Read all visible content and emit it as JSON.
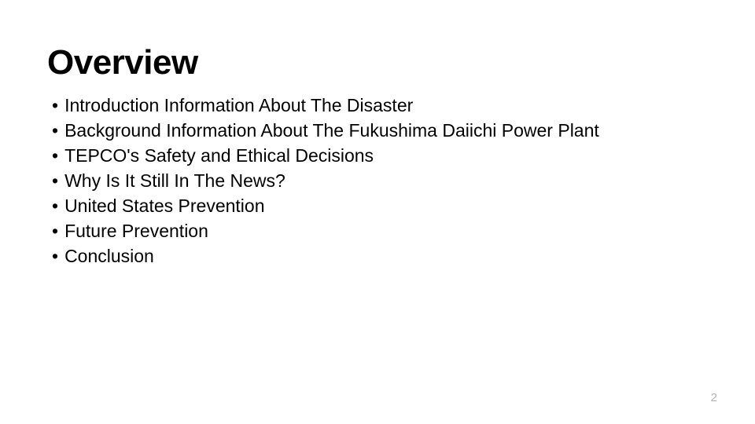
{
  "slide": {
    "title": "Overview",
    "bullets": [
      "Introduction Information About The Disaster",
      "Background Information About The Fukushima Daiichi Power Plant",
      "TEPCO's Safety and Ethical Decisions",
      "Why Is It Still In The News?",
      "United States Prevention",
      "Future Prevention",
      "Conclusion"
    ],
    "page_number": "2",
    "styling": {
      "background_color": "#ffffff",
      "title_color": "#000000",
      "title_fontsize": 44,
      "title_fontweight": 900,
      "body_color": "#000000",
      "body_fontsize": 23,
      "page_number_color": "#b0b0b0",
      "page_number_fontsize": 15,
      "bullet_marker": "•"
    }
  }
}
